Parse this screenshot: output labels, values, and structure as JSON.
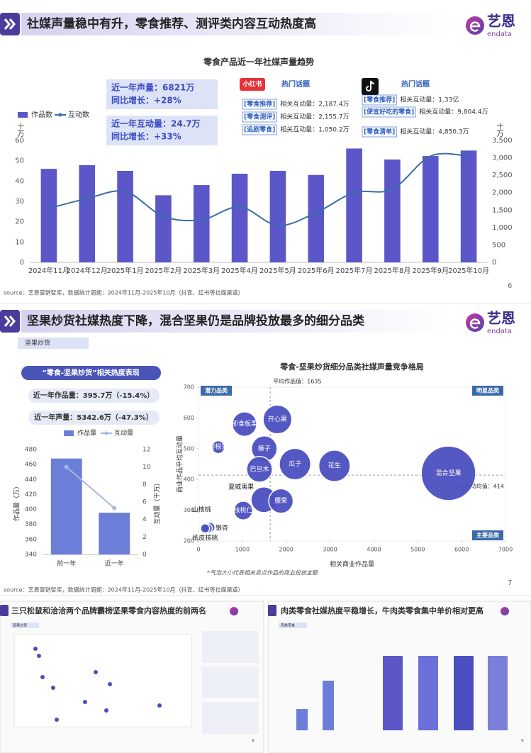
{
  "brand": {
    "name": "艺恩",
    "sub": "endata"
  },
  "slide1": {
    "title": "社媒声量稳中有升，零食推荐、测评类内容互动热度高",
    "kpis": [
      [
        "近一年声量：6821万",
        "同比增长：+28%"
      ],
      [
        "近一年互动量：24.7万",
        "同比增长：+33%"
      ]
    ],
    "xhs": {
      "platform": "小红书",
      "heading": "热门话题",
      "topics": [
        [
          "[零食推荐]",
          "相关互动量：2,187.4万"
        ],
        [
          "[零食测评]",
          "相关互动量：2,155.7万"
        ],
        [
          "[追剧零食]",
          "相关互动量：1,050.2万"
        ]
      ]
    },
    "douyin": {
      "heading": "热门话题",
      "topics": [
        [
          "[零食推荐]",
          "相关互动量：1.33亿"
        ],
        [
          "[便宜好吃的零食]",
          "相关互动量：9,804.4万"
        ],
        [
          "[零食清单]",
          "相关互动量：4,850.3万"
        ]
      ]
    },
    "page_number": "6",
    "source": "source：艺恩营销智库，数据统计周期：2024年11月-2025年10月（抖音、红书等社媒渠道）"
  },
  "slide2": {
    "title": "坚果炒货社媒热度下降，混合坚果仍是品牌投放最多的细分品类",
    "tag": "坚果炒货",
    "panel_title": "“零食-坚果炒货”相关热度表现",
    "kpis": [
      "近一年作品量：395.7万（-15.4%）",
      "近一年声量：5342.6万（-47.3%）"
    ],
    "page_number": "7",
    "source": "source：艺恩营销智库，数据统计周期：2024年11月-2025年10月（抖音、红书等社媒渠道）"
  },
  "thumbs": [
    {
      "title": "三只松鼠和洽洽两个品牌霸榜坚果零食内容热度的前两名",
      "tag": "坚果炒货",
      "page_number": "8"
    },
    {
      "title": "肉类零食社媒热度平稳增长，牛肉类零食集中单价相对更高",
      "tag": "肉类零食",
      "page_number": "9"
    }
  ],
  "chart_data": [
    {
      "type": "bar-line",
      "title": "零食产品近一年社媒声量趋势",
      "categories": [
        "2024年11月",
        "2024年12月",
        "2025年1月",
        "2025年2月",
        "2025年3月",
        "2025年4月",
        "2025年5月",
        "2025年6月",
        "2025年7月",
        "2025年8月",
        "2025年9月",
        "2025年10月"
      ],
      "series": [
        {
          "name": "作品数",
          "color": "#5b57c9",
          "values": [
            46,
            47.8,
            45,
            33,
            38,
            43.6,
            45,
            43,
            56,
            50.6,
            52.3,
            55
          ]
        },
        {
          "name": "互动数",
          "color": "#3a6ea5",
          "axis": "y2",
          "values": [
            1550,
            1830,
            2030,
            1320,
            1220,
            1590,
            1060,
            1425,
            2000,
            2100,
            3050,
            3050
          ]
        }
      ],
      "ylabel": "十万",
      "y2label": "十万",
      "ylim": [
        0,
        60
      ],
      "yticks": [
        0,
        10,
        20,
        30,
        40,
        50,
        60
      ],
      "y2lim": [
        0,
        3500
      ],
      "y2ticks": [
        0,
        500,
        {
          "value": 1000,
          "label": "1,000"
        },
        {
          "value": 1500,
          "label": "1,500"
        },
        {
          "value": 2000,
          "label": "2,000"
        },
        {
          "value": 2500,
          "label": "2,500"
        },
        {
          "value": 3000,
          "label": "3,000"
        },
        {
          "value": 3500,
          "label": "3,500"
        }
      ],
      "grid": false
    },
    {
      "type": "bar-line",
      "categories": [
        "前一年",
        "近一年"
      ],
      "series": [
        {
          "name": "作品量",
          "color": "#6b7fd9",
          "values": [
            468,
            395.7
          ]
        },
        {
          "name": "互动量",
          "color": "#a9b6df",
          "axis": "y2",
          "values": [
            10,
            5.3
          ]
        }
      ],
      "ylabel": "作品量（万）",
      "y2label": "互动量（千万）",
      "ylim": [
        340,
        480
      ],
      "yticks": [
        340,
        360,
        380,
        400,
        420,
        440,
        460,
        480
      ],
      "y2lim": [
        0,
        12
      ],
      "y2ticks": [
        0,
        2,
        4,
        6,
        8,
        10,
        12
      ],
      "grid": false
    },
    {
      "type": "bubble",
      "title": "零食-坚果炒货细分品类社媒声量竞争格局",
      "xlabel": "相关商业作品量",
      "ylabel": "商业作品平均互动量",
      "xlim": [
        0,
        7000
      ],
      "xticks": [
        0,
        1000,
        2000,
        3000,
        4000,
        5000,
        6000,
        7000
      ],
      "ylim": [
        200,
        700
      ],
      "yticks": [
        200,
        300,
        400,
        500,
        600,
        700
      ],
      "color": "#4b4fc0",
      "points": [
        {
          "name": "混合坚果",
          "x": 5700,
          "y": 420,
          "size": 144
        },
        {
          "name": "花生",
          "x": 3100,
          "y": 444,
          "size": 48
        },
        {
          "name": "瓜子",
          "x": 2200,
          "y": 450,
          "size": 48
        },
        {
          "name": "开心果",
          "x": 1800,
          "y": 595,
          "size": 40
        },
        {
          "name": "即食板栗",
          "x": 1050,
          "y": 580,
          "size": 29
        },
        {
          "name": "榛子",
          "x": 1500,
          "y": 500,
          "size": 32
        },
        {
          "name": "巴旦木",
          "x": 1390,
          "y": 433,
          "size": 32
        },
        {
          "name": "碧根果",
          "x": 450,
          "y": 505,
          "size": 8
        },
        {
          "name": "夏威夷果",
          "x": 1490,
          "y": 334,
          "size": 32
        },
        {
          "name": "腰果",
          "x": 1880,
          "y": 330,
          "size": 29
        },
        {
          "name": "核桃仁",
          "x": 1020,
          "y": 299,
          "size": 17
        },
        {
          "name": "山核桃",
          "x": 260,
          "y": 244,
          "size": 5
        },
        {
          "name": "银杏",
          "x": 210,
          "y": 241,
          "size": 4
        },
        {
          "name": "纸皮核桃",
          "x": 150,
          "y": 241,
          "size": 4
        }
      ],
      "ref_x": {
        "label": "平均作品值：1635",
        "value": 1635
      },
      "ref_y": {
        "label": "平均互动均值：414",
        "value": 414
      },
      "quadrants": [
        "潜力品类",
        "明星品类",
        "主要品类"
      ],
      "note": "*气泡大小代表相关卖点作品的商业投放金额"
    }
  ]
}
